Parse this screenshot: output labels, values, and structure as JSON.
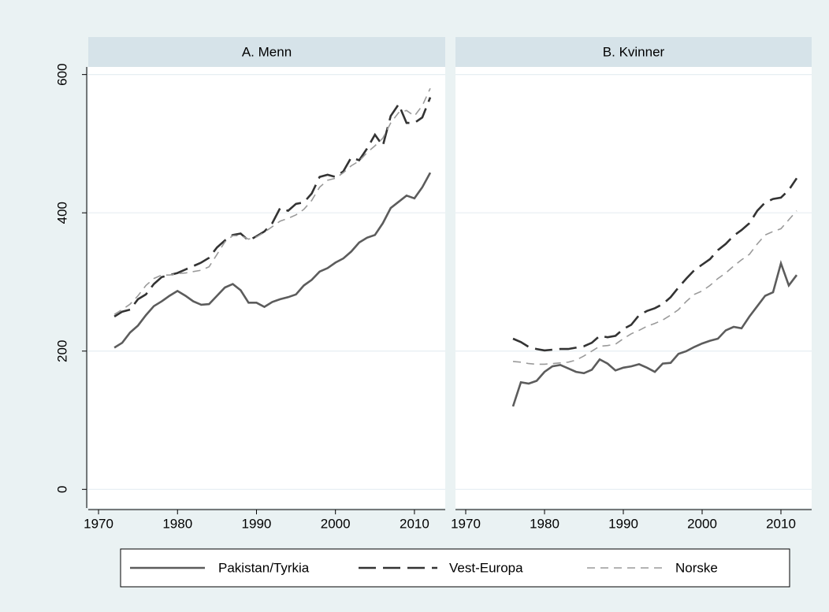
{
  "chart_data": [
    {
      "type": "line",
      "title": "A. Menn",
      "x": [
        1972,
        1973,
        1974,
        1975,
        1976,
        1977,
        1978,
        1979,
        1980,
        1981,
        1982,
        1983,
        1984,
        1985,
        1986,
        1987,
        1988,
        1989,
        1990,
        1991,
        1992,
        1993,
        1994,
        1995,
        1996,
        1997,
        1998,
        1999,
        2000,
        2001,
        2002,
        2003,
        2004,
        2005,
        2006,
        2007,
        2008,
        2009,
        2010,
        2011,
        2012
      ],
      "series": [
        {
          "name": "Pakistan/Tyrkia",
          "color": "#5c5c5c",
          "values": [
            205,
            212,
            227,
            237,
            252,
            265,
            272,
            280,
            287,
            280,
            272,
            267,
            268,
            280,
            292,
            297,
            288,
            270,
            270,
            264,
            271,
            275,
            278,
            282,
            295,
            303,
            315,
            320,
            328,
            334,
            344,
            357,
            364,
            368,
            385,
            407,
            416,
            425,
            421,
            437,
            458
          ]
        },
        {
          "name": "Vest-Europa",
          "color": "#333333",
          "values": [
            250,
            257,
            260,
            275,
            282,
            297,
            307,
            310,
            313,
            318,
            323,
            328,
            335,
            350,
            360,
            368,
            370,
            360,
            366,
            373,
            385,
            407,
            403,
            413,
            415,
            428,
            452,
            455,
            452,
            460,
            480,
            476,
            493,
            513,
            497,
            540,
            557,
            530,
            530,
            538,
            567
          ]
        },
        {
          "name": "Norske",
          "color": "#9a9a9a",
          "values": [
            253,
            260,
            268,
            280,
            295,
            305,
            310,
            310,
            312,
            313,
            315,
            317,
            322,
            340,
            358,
            367,
            367,
            362,
            365,
            372,
            380,
            388,
            392,
            397,
            405,
            418,
            437,
            447,
            450,
            458,
            468,
            475,
            487,
            497,
            508,
            530,
            545,
            548,
            540,
            555,
            580
          ]
        }
      ],
      "xlim": [
        1968.7,
        2013.9
      ],
      "xticks": [
        1970,
        1980,
        1990,
        2000,
        2010
      ],
      "ylim": [
        -27,
        611
      ],
      "yticks": [
        0,
        200,
        400,
        600
      ],
      "grid": true
    },
    {
      "type": "line",
      "title": "B. Kvinner",
      "x": [
        1976,
        1977,
        1978,
        1979,
        1980,
        1981,
        1982,
        1983,
        1984,
        1985,
        1986,
        1987,
        1988,
        1989,
        1990,
        1991,
        1992,
        1993,
        1994,
        1995,
        1996,
        1997,
        1998,
        1999,
        2000,
        2001,
        2002,
        2003,
        2004,
        2005,
        2006,
        2007,
        2008,
        2009,
        2010,
        2011,
        2012
      ],
      "series": [
        {
          "name": "Pakistan/Tyrkia",
          "color": "#5c5c5c",
          "values": [
            120,
            155,
            153,
            157,
            170,
            178,
            180,
            175,
            170,
            168,
            173,
            188,
            182,
            172,
            176,
            178,
            181,
            176,
            170,
            182,
            183,
            196,
            200,
            206,
            211,
            215,
            218,
            230,
            235,
            233,
            250,
            265,
            280,
            285,
            327,
            295,
            310
          ]
        },
        {
          "name": "Vest-Europa",
          "color": "#333333",
          "values": [
            218,
            213,
            206,
            203,
            201,
            202,
            203,
            203,
            205,
            207,
            212,
            222,
            220,
            222,
            232,
            238,
            252,
            258,
            262,
            268,
            278,
            292,
            305,
            317,
            325,
            333,
            346,
            355,
            367,
            375,
            385,
            403,
            415,
            420,
            422,
            433,
            450
          ]
        },
        {
          "name": "Norske",
          "color": "#9a9a9a",
          "values": [
            185,
            184,
            182,
            181,
            181,
            182,
            183,
            184,
            187,
            193,
            200,
            207,
            208,
            210,
            218,
            225,
            230,
            236,
            240,
            245,
            252,
            260,
            272,
            282,
            287,
            295,
            305,
            313,
            323,
            332,
            340,
            355,
            368,
            373,
            377,
            390,
            403
          ]
        }
      ],
      "xlim": [
        1968.7,
        2013.9
      ],
      "xticks": [
        1970,
        1980,
        1990,
        2000,
        2010
      ],
      "ylim": [
        -27,
        611
      ],
      "yticks": [
        0,
        200,
        400,
        600
      ],
      "grid": true
    }
  ]
}
